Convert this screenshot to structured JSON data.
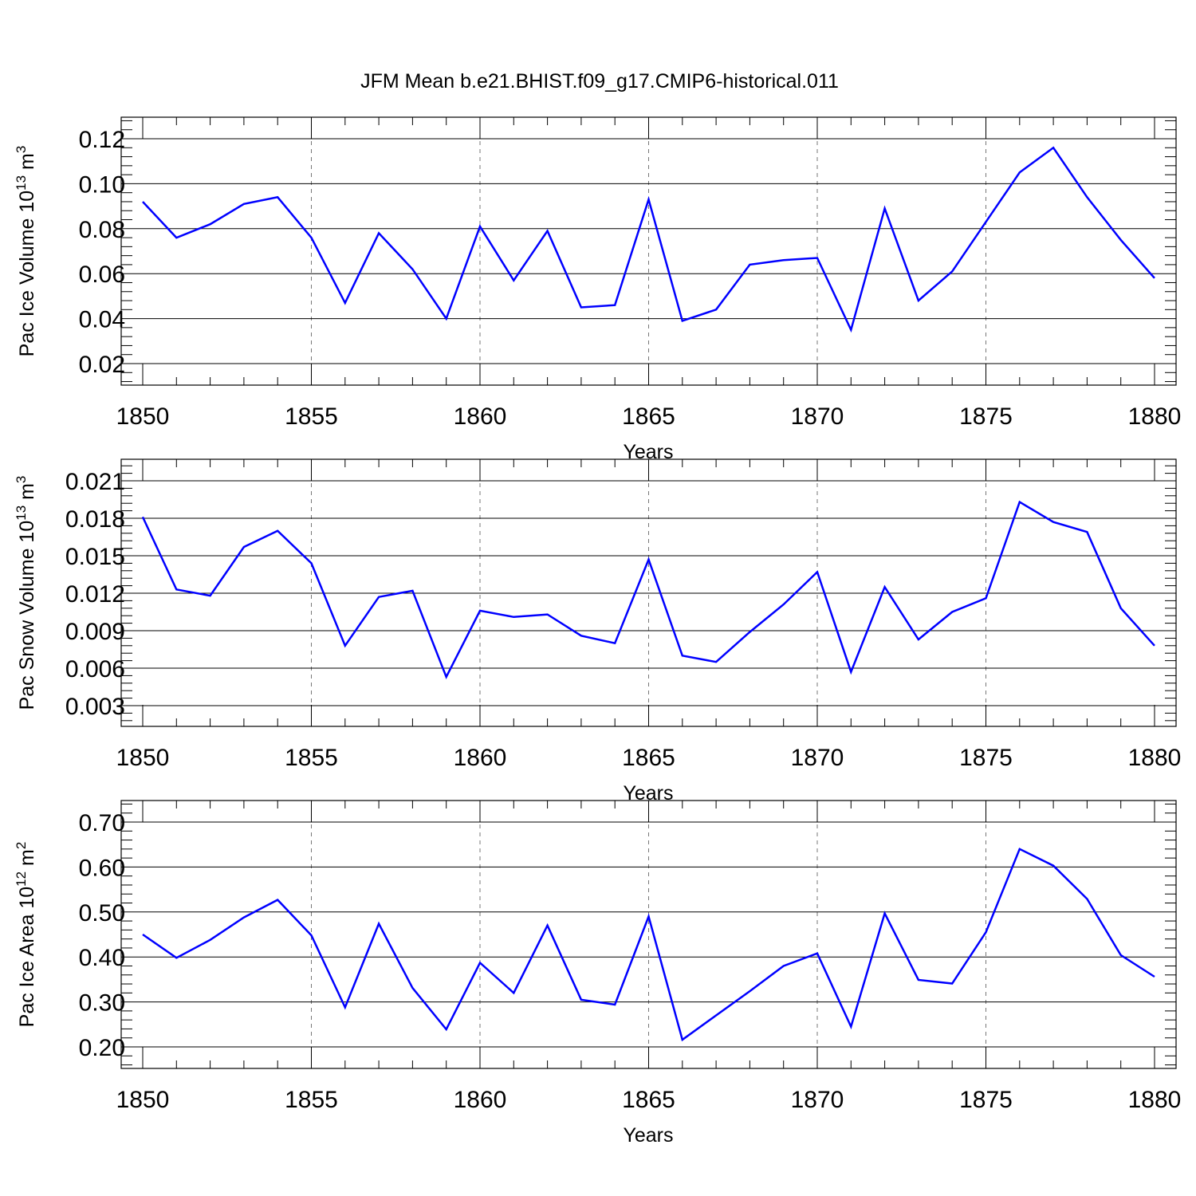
{
  "title": "JFM Mean b.e21.BHIST.f09_g17.CMIP6-historical.011",
  "line_color": "#0000ff",
  "chart_data": [
    {
      "type": "line",
      "xlabel": "Years",
      "ylabel": {
        "text": "Pac Ice Volume 10",
        "exp": "13",
        "unit": " m",
        "unit_exp": "3"
      },
      "xlim": [
        1850,
        1880
      ],
      "ylim": [
        0.02,
        0.12
      ],
      "x_ticks": [
        1850,
        1855,
        1860,
        1865,
        1870,
        1875,
        1880
      ],
      "x_tick_labels": [
        "1850",
        "1855",
        "1860",
        "1865",
        "1870",
        "1875",
        "1880"
      ],
      "y_ticks": [
        0.02,
        0.04,
        0.06,
        0.08,
        0.1,
        0.12
      ],
      "y_tick_labels": [
        "0.02",
        "0.04",
        "0.06",
        "0.08",
        "0.10",
        "0.12"
      ],
      "grid": "vertical dashed at major x ticks",
      "series": [
        {
          "x": [
            1850,
            1851,
            1852,
            1853,
            1854,
            1855,
            1856,
            1857,
            1858,
            1859,
            1860,
            1861,
            1862,
            1863,
            1864,
            1865,
            1866,
            1867,
            1868,
            1869,
            1870,
            1871,
            1872,
            1873,
            1874,
            1875,
            1876,
            1877,
            1878,
            1879,
            1880
          ],
          "values": [
            0.092,
            0.076,
            0.082,
            0.091,
            0.094,
            0.076,
            0.047,
            0.078,
            0.062,
            0.04,
            0.081,
            0.057,
            0.079,
            0.045,
            0.046,
            0.093,
            0.039,
            0.044,
            0.064,
            0.066,
            0.067,
            0.035,
            0.089,
            0.048,
            0.061,
            0.083,
            0.105,
            0.116,
            0.094,
            0.075,
            0.058
          ]
        }
      ]
    },
    {
      "type": "line",
      "xlabel": "Years",
      "ylabel": {
        "text": "Pac Snow Volume 10",
        "exp": "13",
        "unit": " m",
        "unit_exp": "3"
      },
      "xlim": [
        1850,
        1880
      ],
      "ylim": [
        0.003,
        0.021
      ],
      "x_ticks": [
        1850,
        1855,
        1860,
        1865,
        1870,
        1875,
        1880
      ],
      "x_tick_labels": [
        "1850",
        "1855",
        "1860",
        "1865",
        "1870",
        "1875",
        "1880"
      ],
      "y_ticks": [
        0.003,
        0.006,
        0.009,
        0.012,
        0.015,
        0.018,
        0.021
      ],
      "y_tick_labels": [
        "0.003",
        "0.006",
        "0.009",
        "0.012",
        "0.015",
        "0.018",
        "0.021"
      ],
      "grid": "vertical dashed at major x ticks",
      "series": [
        {
          "x": [
            1850,
            1851,
            1852,
            1853,
            1854,
            1855,
            1856,
            1857,
            1858,
            1859,
            1860,
            1861,
            1862,
            1863,
            1864,
            1865,
            1866,
            1867,
            1868,
            1869,
            1870,
            1871,
            1872,
            1873,
            1874,
            1875,
            1876,
            1877,
            1878,
            1879,
            1880
          ],
          "values": [
            0.0181,
            0.0123,
            0.0118,
            0.0157,
            0.017,
            0.0144,
            0.0078,
            0.0117,
            0.0122,
            0.0053,
            0.0106,
            0.0101,
            0.0103,
            0.0086,
            0.008,
            0.0147,
            0.007,
            0.0065,
            0.0089,
            0.0111,
            0.0137,
            0.0057,
            0.0125,
            0.0083,
            0.0105,
            0.0116,
            0.0193,
            0.0177,
            0.0169,
            0.0108,
            0.0078
          ]
        }
      ]
    },
    {
      "type": "line",
      "xlabel": "Years",
      "ylabel": {
        "text": "Pac Ice Area 10",
        "exp": "12",
        "unit": " m",
        "unit_exp": "2"
      },
      "xlim": [
        1850,
        1880
      ],
      "ylim": [
        0.2,
        0.7
      ],
      "x_ticks": [
        1850,
        1855,
        1860,
        1865,
        1870,
        1875,
        1880
      ],
      "x_tick_labels": [
        "1850",
        "1855",
        "1860",
        "1865",
        "1870",
        "1875",
        "1880"
      ],
      "y_ticks": [
        0.2,
        0.3,
        0.4,
        0.5,
        0.6,
        0.7
      ],
      "y_tick_labels": [
        "0.20",
        "0.30",
        "0.40",
        "0.50",
        "0.60",
        "0.70"
      ],
      "grid": "vertical dashed at major x ticks",
      "series": [
        {
          "x": [
            1850,
            1851,
            1852,
            1853,
            1854,
            1855,
            1856,
            1857,
            1858,
            1859,
            1860,
            1861,
            1862,
            1863,
            1864,
            1865,
            1866,
            1867,
            1868,
            1869,
            1870,
            1871,
            1872,
            1873,
            1874,
            1875,
            1876,
            1877,
            1878,
            1879,
            1880
          ],
          "values": [
            0.45,
            0.398,
            0.438,
            0.488,
            0.527,
            0.448,
            0.288,
            0.474,
            0.331,
            0.239,
            0.387,
            0.32,
            0.47,
            0.305,
            0.294,
            0.49,
            0.216,
            0.27,
            0.324,
            0.38,
            0.408,
            0.245,
            0.497,
            0.349,
            0.341,
            0.455,
            0.64,
            0.603,
            0.529,
            0.404,
            0.356
          ]
        }
      ]
    }
  ]
}
